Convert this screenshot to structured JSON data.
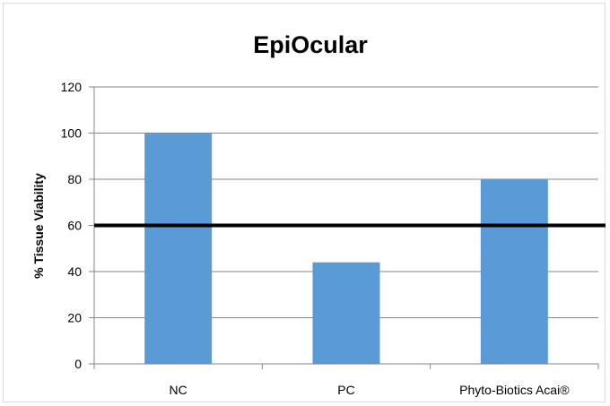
{
  "chart_data": {
    "type": "bar",
    "title": "EpiOcular",
    "xlabel": "",
    "ylabel": "% Tissue Viability",
    "categories": [
      "NC",
      "PC",
      "Phyto-Biotics Acai®"
    ],
    "values": [
      100,
      44,
      80
    ],
    "ylim": [
      0,
      120
    ],
    "yticks": [
      "0",
      "20",
      "40",
      "60",
      "80",
      "100",
      "120"
    ],
    "threshold": 60,
    "grid": true,
    "legend": "none",
    "colors": {
      "bar": "#5b9bd5",
      "grid": "#868686",
      "threshold": "#000000"
    }
  }
}
